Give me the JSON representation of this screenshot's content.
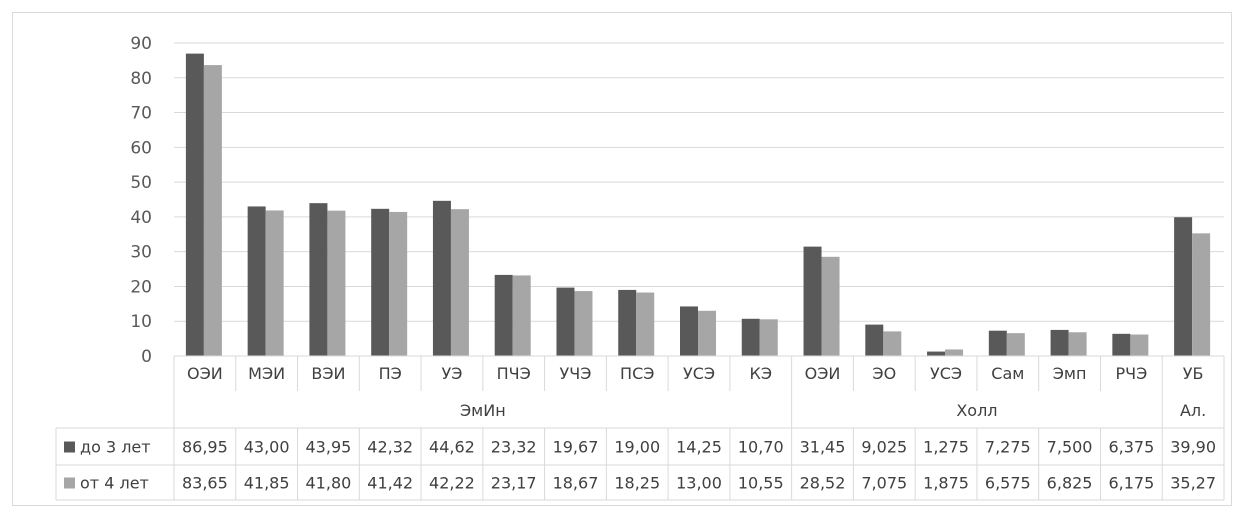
{
  "chart_data": {
    "type": "bar",
    "ylim": [
      0,
      90
    ],
    "yticks": [
      0,
      10,
      20,
      30,
      40,
      50,
      60,
      70,
      80,
      90
    ],
    "grid": true,
    "categories": [
      "ОЭИ",
      "МЭИ",
      "ВЭИ",
      "ПЭ",
      "УЭ",
      "ПЧЭ",
      "УЧЭ",
      "ПСЭ",
      "УСЭ",
      "КЭ",
      "ОЭИ",
      "ЭО",
      "УСЭ",
      "Сам",
      "Эмп",
      "РЧЭ",
      "УБ"
    ],
    "groups": [
      {
        "label": "ЭмИн",
        "count": 10
      },
      {
        "label": "Холл",
        "count": 6
      },
      {
        "label": "Ал.",
        "count": 1
      }
    ],
    "series": [
      {
        "name": "до 3 лет",
        "color": "#595959",
        "values": [
          86.95,
          43.0,
          43.95,
          42.32,
          44.62,
          23.32,
          19.67,
          19.0,
          14.25,
          10.7,
          31.45,
          9.025,
          1.275,
          7.275,
          7.5,
          6.375,
          39.9
        ],
        "labels": [
          "86,95",
          "43,00",
          "43,95",
          "42,32",
          "44,62",
          "23,32",
          "19,67",
          "19,00",
          "14,25",
          "10,70",
          "31,45",
          "9,025",
          "1,275",
          "7,275",
          "7,500",
          "6,375",
          "39,90"
        ]
      },
      {
        "name": "от 4 лет",
        "color": "#a6a6a6",
        "values": [
          83.65,
          41.85,
          41.8,
          41.42,
          42.22,
          23.17,
          18.67,
          18.25,
          13.0,
          10.55,
          28.52,
          7.075,
          1.875,
          6.575,
          6.825,
          6.175,
          35.27
        ],
        "labels": [
          "83,65",
          "41,85",
          "41,80",
          "41,42",
          "42,22",
          "23,17",
          "18,67",
          "18,25",
          "13,00",
          "10,55",
          "28,52",
          "7,075",
          "1,875",
          "6,575",
          "6,825",
          "6,175",
          "35,27"
        ]
      }
    ],
    "legend_placement": "data-table-left"
  }
}
